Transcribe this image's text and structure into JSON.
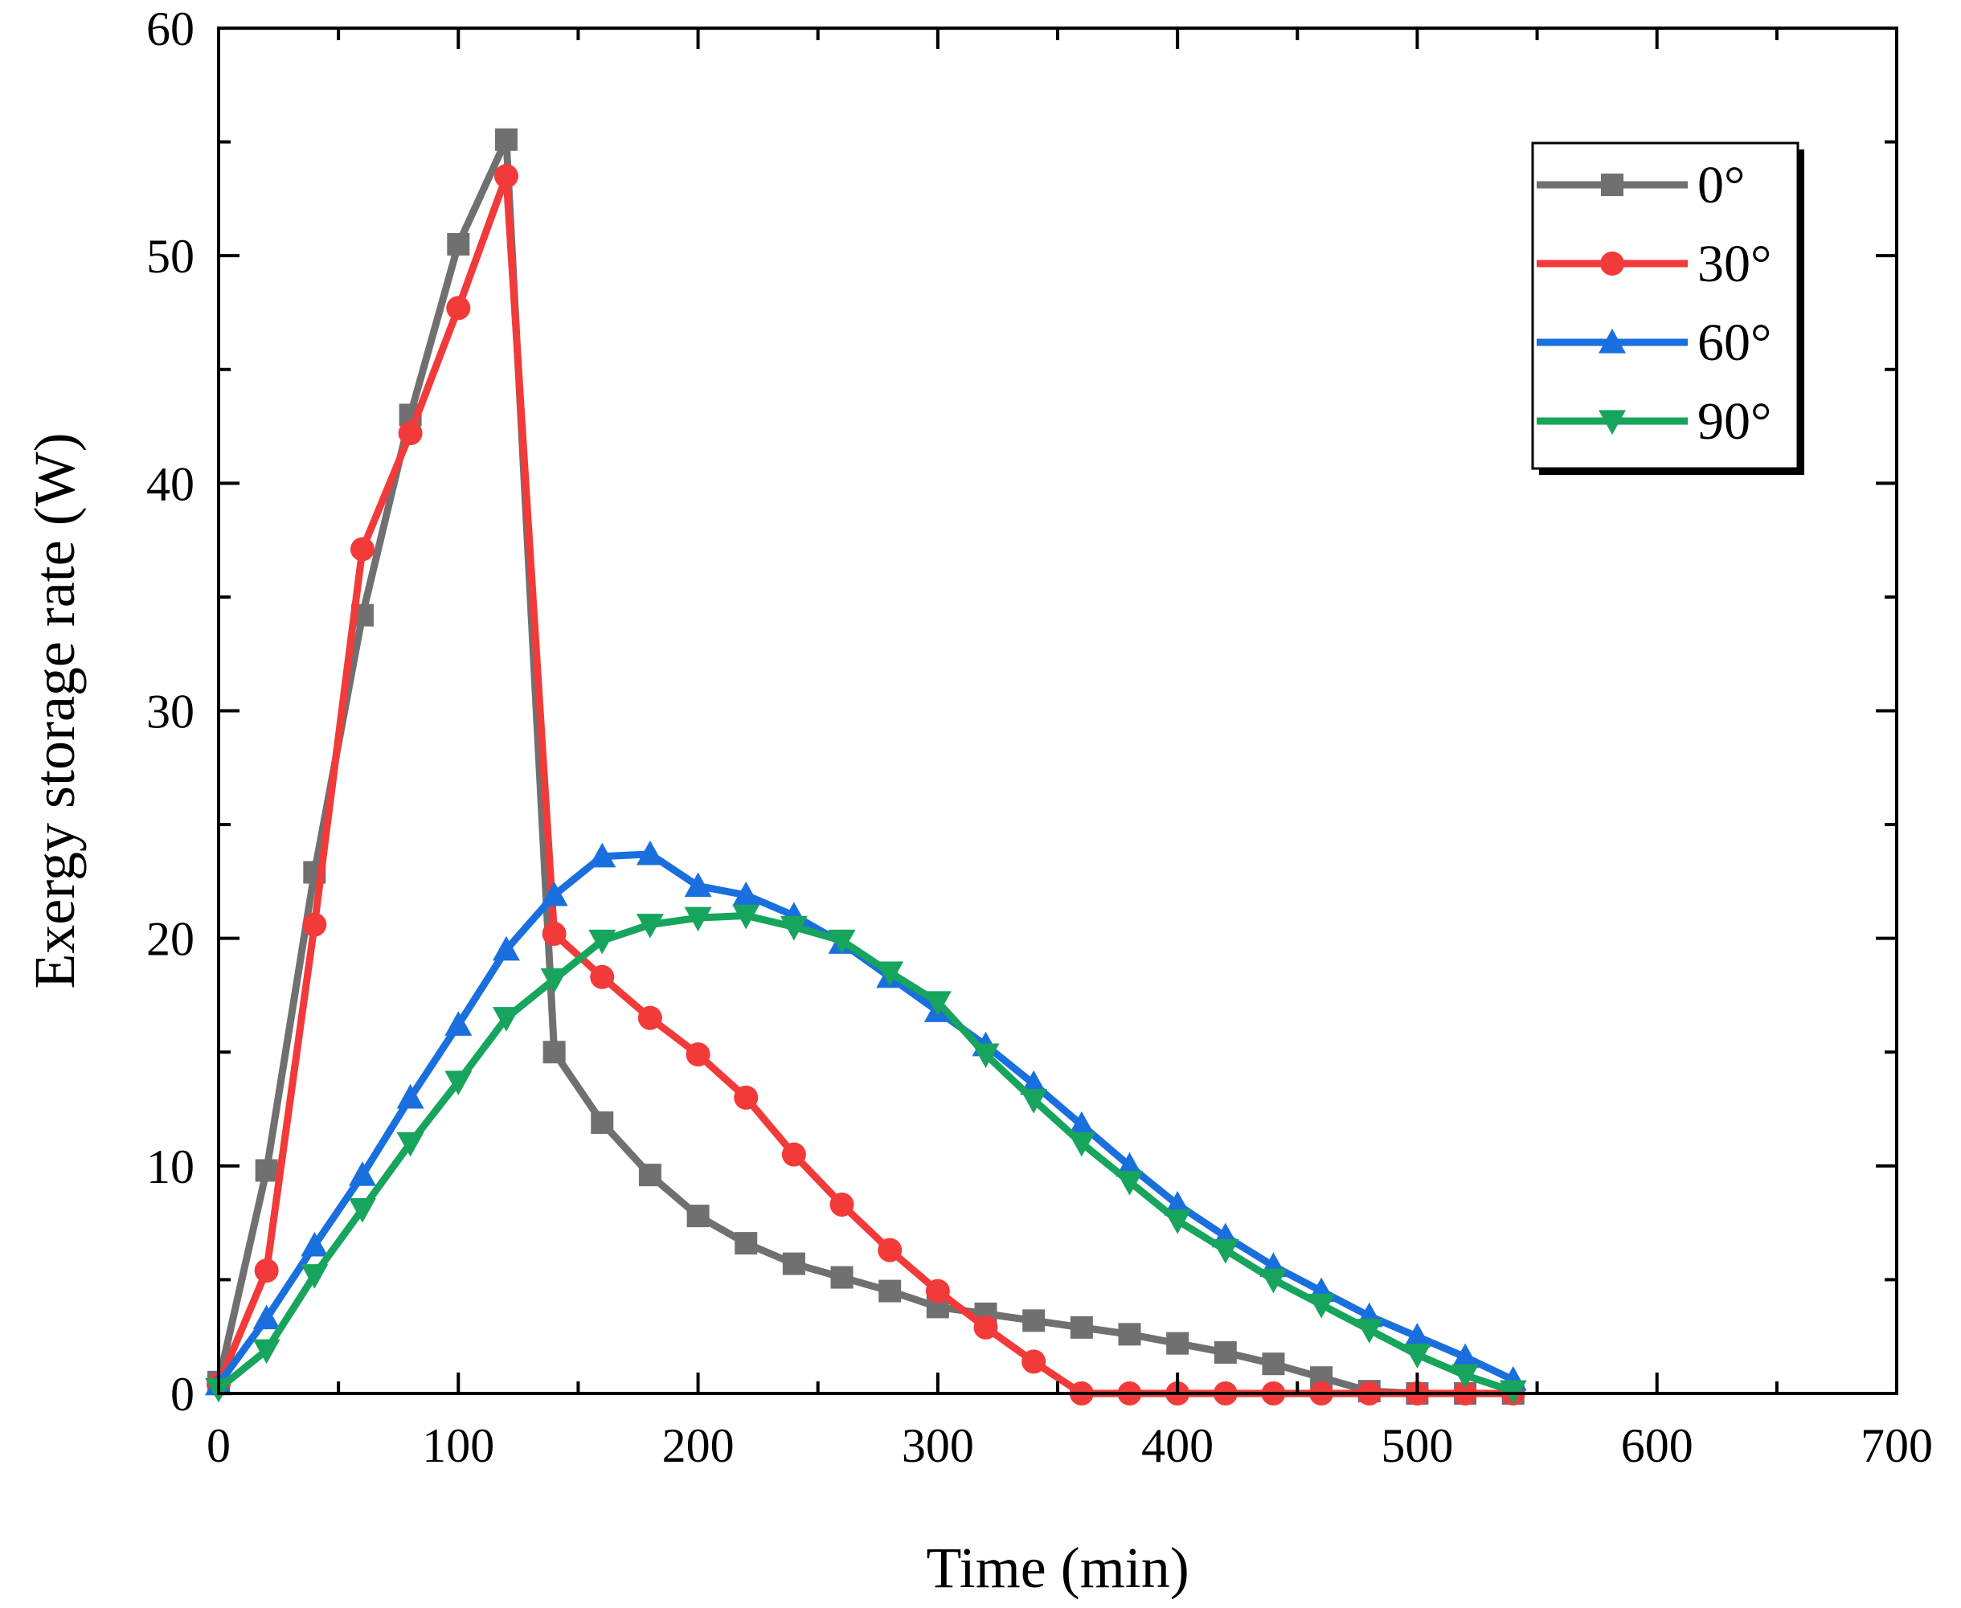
{
  "colors": {
    "series_0": "#707070",
    "series_30": "#f23a3a",
    "series_60": "#1a6fdf",
    "series_90": "#17a45c",
    "axis": "#000000",
    "background": "#ffffff"
  },
  "chart_data": {
    "type": "line",
    "title": "",
    "xlabel": "Time (min)",
    "ylabel": "Exergy storage rate (W)",
    "xlim": [
      0,
      700
    ],
    "ylim": [
      0,
      60
    ],
    "x_ticks": [
      0,
      100,
      200,
      300,
      400,
      500,
      600,
      700
    ],
    "y_ticks": [
      0,
      10,
      20,
      30,
      40,
      50,
      60
    ],
    "grid": false,
    "legend_position": "top-right",
    "x": [
      0,
      20,
      40,
      60,
      80,
      100,
      120,
      140,
      160,
      180,
      200,
      220,
      240,
      260,
      280,
      300,
      320,
      340,
      360,
      380,
      400,
      420,
      440,
      460,
      480,
      500,
      520,
      540
    ],
    "series": [
      {
        "name": "0°",
        "marker": "square",
        "values": [
          0.5,
          9.8,
          22.9,
          34.2,
          43.0,
          50.5,
          55.1,
          15.0,
          11.9,
          9.6,
          7.8,
          6.6,
          5.7,
          5.1,
          4.5,
          3.8,
          3.5,
          3.2,
          2.9,
          2.6,
          2.2,
          1.8,
          1.3,
          0.7,
          0.1,
          0.0,
          0.0,
          0.0
        ]
      },
      {
        "name": "30°",
        "marker": "circle",
        "values": [
          0.4,
          5.4,
          20.6,
          37.1,
          42.2,
          47.7,
          53.5,
          20.2,
          18.3,
          16.5,
          14.9,
          13.0,
          10.5,
          8.3,
          6.3,
          4.5,
          2.9,
          1.4,
          0.0,
          0.0,
          0.0,
          0.0,
          0.0,
          0.0,
          0.0,
          0.0,
          0.0,
          0.0
        ]
      },
      {
        "name": "60°",
        "marker": "triangle-up",
        "values": [
          0.4,
          3.3,
          6.5,
          9.6,
          13.0,
          16.2,
          19.5,
          21.9,
          23.6,
          23.7,
          22.3,
          21.9,
          21.0,
          19.8,
          18.3,
          16.8,
          15.3,
          13.6,
          11.8,
          10.0,
          8.3,
          6.9,
          5.6,
          4.5,
          3.4,
          2.5,
          1.6,
          0.6
        ]
      },
      {
        "name": "90°",
        "marker": "triangle-down",
        "values": [
          0.2,
          1.9,
          5.2,
          8.1,
          11.0,
          13.7,
          16.5,
          18.2,
          19.9,
          20.6,
          20.9,
          21.0,
          20.5,
          19.9,
          18.5,
          17.2,
          14.9,
          12.9,
          11.0,
          9.3,
          7.6,
          6.3,
          5.0,
          3.9,
          2.8,
          1.7,
          0.8,
          0.1
        ]
      }
    ]
  }
}
